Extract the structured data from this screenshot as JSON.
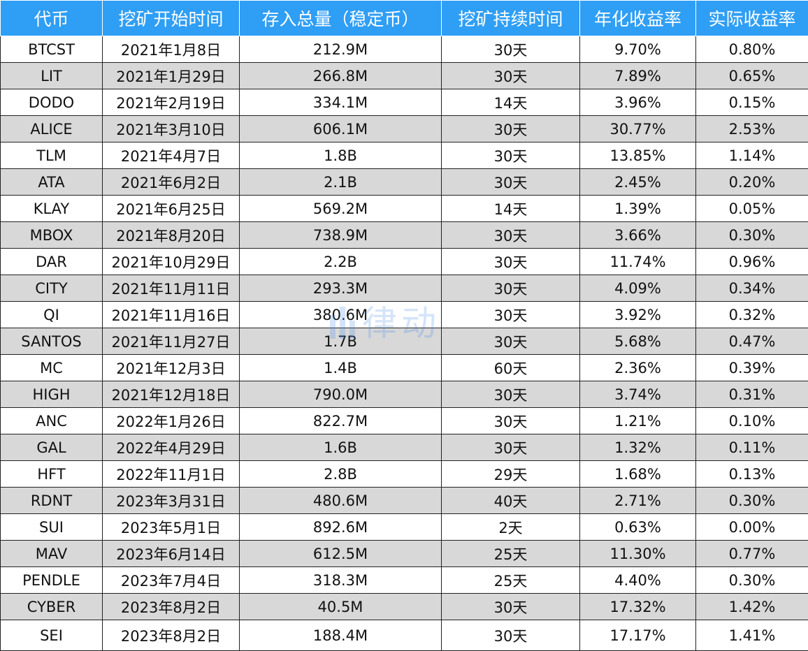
{
  "table": {
    "headers": [
      "代币",
      "挖矿开始时间",
      "存入总量（稳定币）",
      "挖矿持续时间",
      "年化收益率",
      "实际收益率"
    ],
    "rows": [
      [
        "BTCST",
        "2021年1月8日",
        "212.9M",
        "30天",
        "9.70%",
        "0.80%"
      ],
      [
        "LIT",
        "2021年1月29日",
        "266.8M",
        "30天",
        "7.89%",
        "0.65%"
      ],
      [
        "DODO",
        "2021年2月19日",
        "334.1M",
        "14天",
        "3.96%",
        "0.15%"
      ],
      [
        "ALICE",
        "2021年3月10日",
        "606.1M",
        "30天",
        "30.77%",
        "2.53%"
      ],
      [
        "TLM",
        "2021年4月7日",
        "1.8B",
        "30天",
        "13.85%",
        "1.14%"
      ],
      [
        "ATA",
        "2021年6月2日",
        "2.1B",
        "30天",
        "2.45%",
        "0.20%"
      ],
      [
        "KLAY",
        "2021年6月25日",
        "569.2M",
        "14天",
        "1.39%",
        "0.05%"
      ],
      [
        "MBOX",
        "2021年8月20日",
        "738.9M",
        "30天",
        "3.66%",
        "0.30%"
      ],
      [
        "DAR",
        "2021年10月29日",
        "2.2B",
        "30天",
        "11.74%",
        "0.96%"
      ],
      [
        "CITY",
        "2021年11月11日",
        "293.3M",
        "30天",
        "4.09%",
        "0.34%"
      ],
      [
        "QI",
        "2021年11月16日",
        "380.6M",
        "30天",
        "3.92%",
        "0.32%"
      ],
      [
        "SANTOS",
        "2021年11月27日",
        "1.7B",
        "30天",
        "5.68%",
        "0.47%"
      ],
      [
        "MC",
        "2021年12月3日",
        "1.4B",
        "60天",
        "2.36%",
        "0.39%"
      ],
      [
        "HIGH",
        "2021年12月18日",
        "790.0M",
        "30天",
        "3.74%",
        "0.31%"
      ],
      [
        "ANC",
        "2022年1月26日",
        "822.7M",
        "30天",
        "1.21%",
        "0.10%"
      ],
      [
        "GAL",
        "2022年4月29日",
        "1.6B",
        "30天",
        "1.32%",
        "0.11%"
      ],
      [
        "HFT",
        "2022年11月1日",
        "2.8B",
        "29天",
        "1.68%",
        "0.13%"
      ],
      [
        "RDNT",
        "2023年3月31日",
        "480.6M",
        "40天",
        "2.71%",
        "0.30%"
      ],
      [
        "SUI",
        "2023年5月1日",
        "892.6M",
        "2天",
        "0.63%",
        "0.00%"
      ],
      [
        "MAV",
        "2023年6月14日",
        "612.5M",
        "25天",
        "11.30%",
        "0.77%"
      ],
      [
        "PENDLE",
        "2023年7月4日",
        "318.3M",
        "25天",
        "4.40%",
        "0.30%"
      ],
      [
        "CYBER",
        "2023年8月2日",
        "40.5M",
        "30天",
        "17.32%",
        "1.42%"
      ],
      [
        "SEI",
        "2023年8月2日",
        "188.4M",
        "30天",
        "17.17%",
        "1.41%"
      ]
    ]
  },
  "watermark": {
    "text": "律动",
    "icon": "bar-chart-icon",
    "color": "#3f86e6"
  },
  "colors": {
    "header_bg": "#2f9ef5",
    "stripe": "#d8d8d8",
    "border": "#222222"
  }
}
